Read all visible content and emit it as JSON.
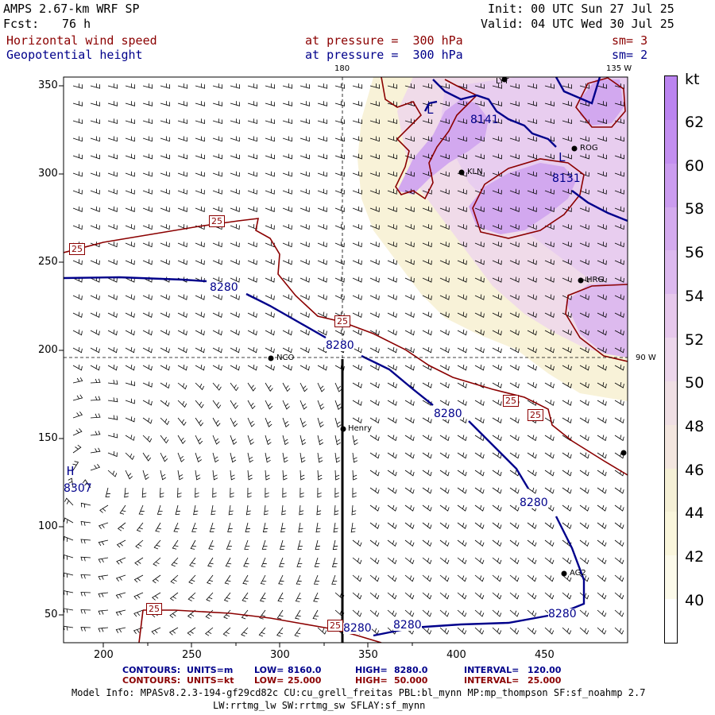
{
  "header": {
    "model_title": "AMPS 2.67-km WRF SP",
    "fcst_label": "Fcst:",
    "fcst_value": "76 h",
    "init_text": "Init: 00 UTC Sun 27 Jul 25",
    "valid_text": "Valid: 04 UTC Wed 30 Jul 25"
  },
  "fields": [
    {
      "name": "Horizontal wind speed",
      "level": "at pressure =  300 hPa",
      "sm": "sm= 3",
      "color": "#8b0000"
    },
    {
      "name": "Geopotential height",
      "level": "at pressure =  300 hPa",
      "sm": "sm= 2",
      "color": "#00008b"
    }
  ],
  "map": {
    "x_ticks": [
      "200",
      "250",
      "300",
      "350",
      "400",
      "450"
    ],
    "y_ticks": [
      "350",
      "300",
      "250",
      "200",
      "150",
      "100",
      "50"
    ],
    "top_labels": [
      "180",
      "135 W"
    ],
    "right_label": "90 W",
    "stations": [
      "LYT",
      "ROG",
      "KLN",
      "HRG",
      "NCO",
      "Henry",
      "AG2"
    ],
    "height_labels": [
      "8280",
      "8280",
      "8280",
      "8280",
      "8280",
      "8280",
      "8280",
      "8141",
      "8131",
      "8307"
    ],
    "height_center_symbols": [
      "H",
      "L",
      "L"
    ],
    "speed_labels": [
      "25",
      "25",
      "25",
      "25",
      "25",
      "25",
      "25"
    ]
  },
  "colorbar": {
    "unit": "kt",
    "ticks": [
      "62",
      "60",
      "58",
      "56",
      "54",
      "52",
      "50",
      "48",
      "46",
      "44",
      "42",
      "40"
    ],
    "colors": [
      "#ffffff",
      "#fcfaea",
      "#faf6dc",
      "#f5f0d6",
      "#f3e6df",
      "#efdfe4",
      "#ecd6eb",
      "#e6c8ec",
      "#dcb9ee",
      "#d4abee",
      "#cb9cef",
      "#c38ff0",
      "#bb84f0"
    ]
  },
  "footer": {
    "row1": {
      "label": "CONTOURS:",
      "units": "UNITS=m",
      "low_label": "LOW=",
      "low": "8160.0",
      "high_label": "HIGH=",
      "high": "8280.0",
      "interval_label": "INTERVAL=",
      "interval": "120.00"
    },
    "row2": {
      "label": "CONTOURS:",
      "units": "UNITS=kt",
      "low_label": "LOW=",
      "low": "25.000",
      "high_label": "HIGH=",
      "high": "50.000",
      "interval_label": "INTERVAL=",
      "interval": "25.000"
    },
    "model_info": "Model Info: MPASv8.2.3-194-gf29cd82c CU:cu_grell_freitas PBL:bl_mynn MP:mp_thompson SF:sf_noahmp 2.7",
    "physics": "LW:rrtmg_lw SW:rrtmg_sw SFLAY:sf_mynn"
  }
}
